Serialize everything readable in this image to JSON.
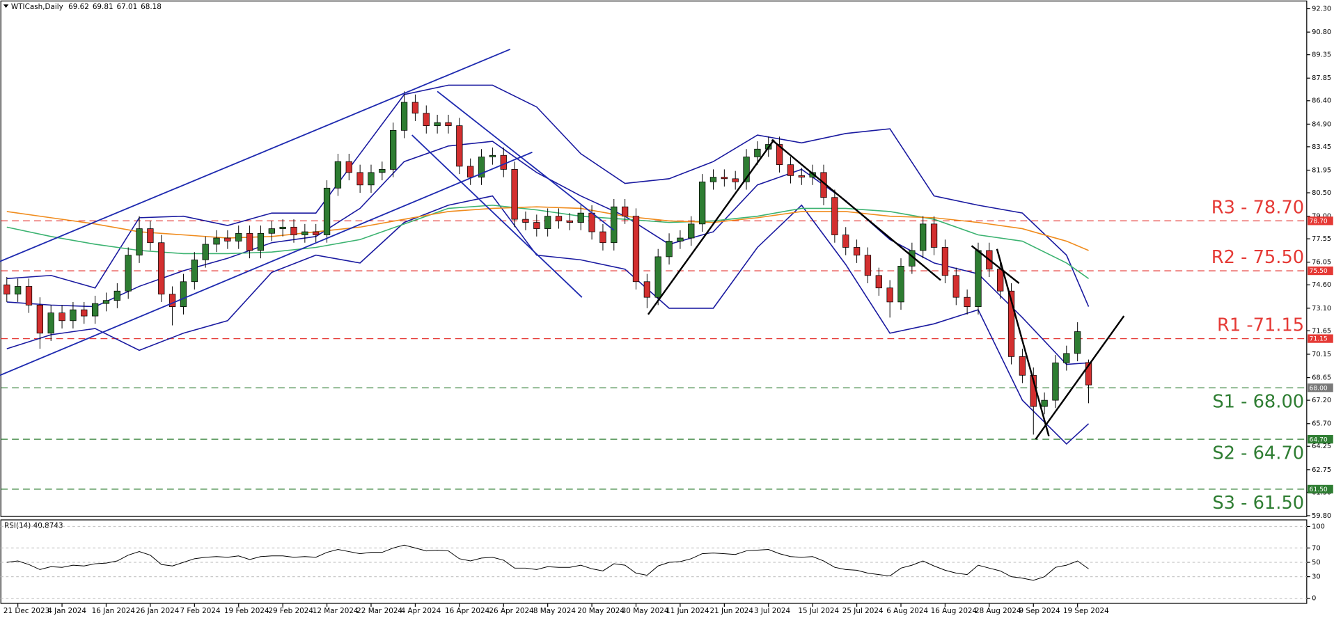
{
  "chart_data": [
    {
      "type": "candlestick",
      "title": "WTICash,Daily",
      "categories": [
        null,
        "21 Dec 2023",
        null,
        null,
        null,
        "4 Jan 2024",
        null,
        null,
        null,
        "16 Jan 2024",
        null,
        null,
        null,
        "26 Jan 2024",
        null,
        null,
        null,
        "7 Feb 2024",
        null,
        null,
        null,
        "19 Feb 2024",
        null,
        null,
        null,
        "29 Feb 2024",
        null,
        null,
        null,
        "12 Mar 2024",
        null,
        null,
        null,
        "22 Mar 2024",
        null,
        null,
        null,
        "4 Apr 2024",
        null,
        null,
        null,
        "16 Apr 2024",
        null,
        null,
        null,
        "26 Apr 2024",
        null,
        null,
        null,
        "8 May 2024",
        null,
        null,
        null,
        "20 May 2024",
        null,
        null,
        null,
        "30 May 2024",
        null,
        null,
        null,
        "11 Jun 2024",
        null,
        null,
        null,
        "21 Jun 2024",
        null,
        null,
        null,
        "3 Jul 2024",
        null,
        null,
        null,
        "15 Jul 2024",
        null,
        null,
        null,
        "25 Jul 2024",
        null,
        null,
        null,
        "6 Aug 2024",
        null,
        null,
        null,
        "16 Aug 2024",
        null,
        null,
        null,
        "28 Aug 2024",
        null,
        null,
        null,
        "9 Sep 2024",
        null,
        null,
        null,
        "19 Sep 2024",
        null
      ],
      "open": [
        74.6,
        74.0,
        74.5,
        73.3,
        71.5,
        72.8,
        72.3,
        73.0,
        72.6,
        73.4,
        73.6,
        74.2,
        76.5,
        78.2,
        77.3,
        74.0,
        73.2,
        74.8,
        76.2,
        77.2,
        77.6,
        77.4,
        77.9,
        76.8,
        77.9,
        78.2,
        78.3,
        77.8,
        78.0,
        77.8,
        80.8,
        82.5,
        81.8,
        81.0,
        81.8,
        82.0,
        84.5,
        86.3,
        85.6,
        84.8,
        85.0,
        84.8,
        82.2,
        81.5,
        82.8,
        82.9,
        82.0,
        78.8,
        78.6,
        78.2,
        79.0,
        78.7,
        78.6,
        79.2,
        78.0,
        77.3,
        79.6,
        79.0,
        74.8,
        73.8,
        76.4,
        77.4,
        77.6,
        78.5,
        81.2,
        81.5,
        81.4,
        81.2,
        82.8,
        83.3,
        83.6,
        82.3,
        81.6,
        81.5,
        81.8,
        80.2,
        77.8,
        77.0,
        76.5,
        75.2,
        74.4,
        73.5,
        75.8,
        76.8,
        78.5,
        77.0,
        75.2,
        73.8,
        73.2,
        76.8,
        75.6,
        74.2,
        70.0,
        68.8,
        66.8,
        67.2,
        69.6,
        70.2,
        69.62
      ],
      "high": [
        75.1,
        75.0,
        75.0,
        73.8,
        73.3,
        73.3,
        73.5,
        73.5,
        73.9,
        74.1,
        74.7,
        77.0,
        79.0,
        78.7,
        77.8,
        74.5,
        75.3,
        76.7,
        77.7,
        78.1,
        78.1,
        78.4,
        78.4,
        78.4,
        78.7,
        78.8,
        78.8,
        78.5,
        78.5,
        81.3,
        83.0,
        83.0,
        82.3,
        82.3,
        82.5,
        85.0,
        87.0,
        86.8,
        86.1,
        85.5,
        85.5,
        85.3,
        82.7,
        83.3,
        83.4,
        83.4,
        82.5,
        79.3,
        79.1,
        79.5,
        79.5,
        79.2,
        79.7,
        79.7,
        78.5,
        80.1,
        80.1,
        79.5,
        75.3,
        76.9,
        77.9,
        78.1,
        79.0,
        81.7,
        82.0,
        82.0,
        81.9,
        83.3,
        83.8,
        84.1,
        84.1,
        82.8,
        82.1,
        82.3,
        82.3,
        80.7,
        78.3,
        77.5,
        77.0,
        75.7,
        74.9,
        76.3,
        77.3,
        79.0,
        79.0,
        77.5,
        75.7,
        74.3,
        77.3,
        77.3,
        76.1,
        74.7,
        70.5,
        69.3,
        67.7,
        70.1,
        70.7,
        72.2,
        69.81
      ],
      "low": [
        73.5,
        73.5,
        72.8,
        70.5,
        71.0,
        71.8,
        71.8,
        72.1,
        72.1,
        72.9,
        73.1,
        73.7,
        76.0,
        76.8,
        73.5,
        72.0,
        72.7,
        74.3,
        75.7,
        76.7,
        76.9,
        76.9,
        76.3,
        76.3,
        77.4,
        77.7,
        77.3,
        77.3,
        77.3,
        77.3,
        80.3,
        81.3,
        80.5,
        80.5,
        81.3,
        81.5,
        84.0,
        85.1,
        84.3,
        84.3,
        84.3,
        81.7,
        81.0,
        81.0,
        82.3,
        81.5,
        78.3,
        78.1,
        77.7,
        77.7,
        78.2,
        78.1,
        78.1,
        77.5,
        76.8,
        76.8,
        78.5,
        74.3,
        73.1,
        73.3,
        75.9,
        76.9,
        77.1,
        78.0,
        80.7,
        80.9,
        80.7,
        80.7,
        82.3,
        82.8,
        81.8,
        81.1,
        81.0,
        81.0,
        79.7,
        77.3,
        76.5,
        76.0,
        74.7,
        73.9,
        72.5,
        73.0,
        75.3,
        76.3,
        76.5,
        74.7,
        73.3,
        72.7,
        72.7,
        75.1,
        73.7,
        69.5,
        68.3,
        65.0,
        66.3,
        66.7,
        69.1,
        69.7,
        67.01
      ],
      "close": [
        74.0,
        74.5,
        73.3,
        71.5,
        72.8,
        72.3,
        73.0,
        72.6,
        73.4,
        73.6,
        74.2,
        76.5,
        78.2,
        77.3,
        74.0,
        73.2,
        74.8,
        76.2,
        77.2,
        77.6,
        77.4,
        77.9,
        76.8,
        77.9,
        78.2,
        78.3,
        77.8,
        78.0,
        77.8,
        80.8,
        82.5,
        81.8,
        81.0,
        81.8,
        82.0,
        84.5,
        86.3,
        85.6,
        84.8,
        85.0,
        84.8,
        82.2,
        81.5,
        82.8,
        82.9,
        82.0,
        78.8,
        78.6,
        78.2,
        79.0,
        78.7,
        78.6,
        79.2,
        78.0,
        77.3,
        79.6,
        79.0,
        74.8,
        73.8,
        76.4,
        77.4,
        77.6,
        78.5,
        81.2,
        81.5,
        81.4,
        81.2,
        82.8,
        83.3,
        83.6,
        82.3,
        81.6,
        81.5,
        81.8,
        80.2,
        77.8,
        77.0,
        76.5,
        75.2,
        74.4,
        73.5,
        75.8,
        76.8,
        78.5,
        77.0,
        75.2,
        73.8,
        73.2,
        76.8,
        75.6,
        74.2,
        70.0,
        68.8,
        66.8,
        67.2,
        69.6,
        70.2,
        71.6,
        68.18
      ],
      "up_color": "#2e7d32",
      "down_color": "#d32f2f",
      "ylim": [
        59.75,
        92.74
      ],
      "yticks": [
        {
          "value": 92.3,
          "label": "92.30"
        },
        {
          "value": 90.8,
          "label": "90.80"
        },
        {
          "value": 89.35,
          "label": "89.35"
        },
        {
          "value": 87.85,
          "label": "87.85"
        },
        {
          "value": 86.4,
          "label": "86.40"
        },
        {
          "value": 84.9,
          "label": "84.90"
        },
        {
          "value": 83.45,
          "label": "83.45"
        },
        {
          "value": 81.95,
          "label": "81.95"
        },
        {
          "value": 80.5,
          "label": "80.50"
        },
        {
          "value": 79,
          "label": "79.00"
        },
        {
          "value": 77.55,
          "label": "77.55"
        },
        {
          "value": 76.05,
          "label": "76.05"
        },
        {
          "value": 74.6,
          "label": "74.60"
        },
        {
          "value": 73.1,
          "label": "73.10"
        },
        {
          "value": 71.65,
          "label": "71.65"
        },
        {
          "value": 70.15,
          "label": "70.15"
        },
        {
          "value": 68.65,
          "label": "68.65"
        },
        {
          "value": 67.2,
          "label": "67.20"
        },
        {
          "value": 65.7,
          "label": "65.70"
        },
        {
          "value": 64.25,
          "label": "64.25"
        },
        {
          "value": 62.75,
          "label": "62.75"
        },
        {
          "value": 61.3,
          "label": "61.30"
        },
        {
          "value": 59.8,
          "label": "59.80"
        }
      ],
      "grid": false,
      "overlays": [
        {
          "color": "#1a1aa0",
          "x": [
            0,
            4,
            8,
            12,
            16,
            20,
            24,
            28,
            32,
            36,
            40,
            44,
            48,
            52,
            56,
            60,
            64,
            68,
            72,
            76,
            80,
            84,
            88,
            92,
            96,
            98
          ],
          "values": [
            75.0,
            75.2,
            74.4,
            78.9,
            79.0,
            78.4,
            79.2,
            79.2,
            83.0,
            86.8,
            87.4,
            87.4,
            86.0,
            83.0,
            81.1,
            81.4,
            82.5,
            84.2,
            83.7,
            84.3,
            84.6,
            80.3,
            79.7,
            79.2,
            76.5,
            73.2
          ]
        },
        {
          "color": "#1a1aa0",
          "x": [
            0,
            4,
            8,
            12,
            16,
            20,
            24,
            28,
            32,
            36,
            40,
            44,
            48,
            52,
            56,
            60,
            64,
            68,
            72,
            76,
            80,
            84,
            88,
            92,
            96,
            98
          ],
          "values": [
            73.5,
            73.3,
            73.2,
            74.5,
            75.5,
            76.3,
            77.3,
            77.7,
            79.5,
            82.5,
            83.5,
            83.8,
            81.8,
            80.3,
            79.0,
            77.2,
            78.0,
            81.0,
            82.0,
            80.0,
            77.5,
            76.0,
            75.3,
            72.5,
            69.5,
            69.6
          ]
        },
        {
          "color": "#1a1aa0",
          "x": [
            0,
            4,
            8,
            12,
            16,
            20,
            24,
            28,
            32,
            36,
            40,
            44,
            48,
            52,
            56,
            60,
            64,
            68,
            72,
            76,
            80,
            84,
            88,
            92,
            96,
            98
          ],
          "values": [
            70.5,
            71.4,
            71.8,
            70.4,
            71.5,
            72.3,
            75.4,
            76.5,
            76.0,
            78.6,
            79.7,
            80.3,
            76.5,
            76.2,
            75.6,
            73.1,
            73.1,
            77.0,
            79.7,
            75.9,
            71.5,
            72.1,
            73.0,
            67.2,
            64.4,
            65.7
          ]
        },
        {
          "color": "#3cb371",
          "x": [
            0,
            4,
            8,
            12,
            16,
            20,
            24,
            28,
            32,
            36,
            40,
            44,
            48,
            52,
            56,
            60,
            64,
            68,
            72,
            76,
            80,
            84,
            88,
            92,
            96,
            98
          ],
          "values": [
            78.3,
            77.7,
            77.2,
            76.8,
            76.6,
            76.6,
            76.7,
            77.0,
            77.5,
            78.5,
            79.5,
            79.7,
            79.4,
            79.0,
            78.8,
            78.6,
            78.7,
            79.0,
            79.5,
            79.5,
            79.3,
            78.8,
            77.8,
            77.4,
            76.0,
            75.0
          ]
        },
        {
          "color": "#f08c1e",
          "x": [
            0,
            4,
            8,
            12,
            16,
            20,
            24,
            28,
            32,
            36,
            40,
            44,
            48,
            52,
            56,
            60,
            64,
            68,
            72,
            76,
            80,
            84,
            88,
            92,
            96,
            98
          ],
          "values": [
            79.3,
            78.9,
            78.5,
            78.0,
            77.8,
            77.6,
            77.7,
            78.0,
            78.3,
            78.8,
            79.3,
            79.5,
            79.6,
            79.5,
            79.0,
            78.7,
            78.6,
            78.9,
            79.3,
            79.3,
            79.0,
            78.9,
            78.6,
            78.2,
            77.4,
            76.8
          ]
        }
      ],
      "trendlines": [
        {
          "color": "#1f2bb0",
          "x": [
            -0.62,
            45.6
          ],
          "values": [
            76.1,
            89.7
          ]
        },
        {
          "color": "#1f2bb0",
          "x": [
            -0.62,
            47.6
          ],
          "values": [
            68.8,
            83.1
          ]
        },
        {
          "color": "#1f2bb0",
          "x": [
            36.7,
            52.1
          ],
          "values": [
            84.2,
            73.8
          ]
        },
        {
          "color": "#1f2bb0",
          "x": [
            39.0,
            55.0
          ],
          "values": [
            87.0,
            78.1
          ]
        },
        {
          "color": "#000000",
          "x": [
            58.1,
            69.5
          ],
          "values": [
            72.7,
            83.9
          ]
        },
        {
          "color": "#000000",
          "x": [
            69.3,
            84.6
          ],
          "values": [
            83.9,
            74.9
          ]
        },
        {
          "color": "#000000",
          "x": [
            87.4,
            91.7
          ],
          "values": [
            77.1,
            74.7
          ]
        },
        {
          "color": "#000000",
          "x": [
            89.7,
            94.4
          ],
          "values": [
            76.9,
            64.9
          ]
        },
        {
          "color": "#000000",
          "x": [
            93.2,
            101.2
          ],
          "values": [
            64.7,
            72.6
          ]
        }
      ],
      "levels": [
        {
          "value": 78.7,
          "label": "R3 - 78.70",
          "marker_label": "78.70",
          "color": "#e53935",
          "marker_color": "#e53935",
          "label_position": "above"
        },
        {
          "value": 75.5,
          "label": "R2 - 75.50",
          "marker_label": "75.50",
          "color": "#e53935",
          "marker_color": "#e53935",
          "label_position": "above"
        },
        {
          "value": 71.15,
          "label": "R1 -71.15",
          "marker_label": "71.15",
          "color": "#e53935",
          "marker_color": "#e53935",
          "label_position": "above"
        },
        {
          "value": 68.0,
          "label": "S1 - 68.00",
          "marker_label": "68.00",
          "color": "#2e7d32",
          "marker_color": "#7a7a7a",
          "label_position": "below"
        },
        {
          "value": 64.7,
          "label": "S2 - 64.70",
          "marker_label": "64.70",
          "color": "#2e7d32",
          "marker_color": "#2e7d32",
          "label_position": "below"
        },
        {
          "value": 61.5,
          "label": "S3 - 61.50",
          "marker_label": "61.50",
          "color": "#2e7d32",
          "marker_color": "#2e7d32",
          "label_position": "below"
        }
      ]
    },
    {
      "type": "line",
      "title": "RSI(14) 40.8743",
      "color": "#000000",
      "values": [
        50,
        52,
        47,
        40,
        44,
        43,
        46,
        45,
        48,
        49,
        52,
        60,
        65,
        60,
        47,
        45,
        50,
        55,
        57,
        58,
        57,
        59,
        54,
        58,
        59,
        59,
        57,
        58,
        57,
        64,
        68,
        65,
        62,
        64,
        64,
        70,
        74,
        70,
        66,
        67,
        66,
        55,
        52,
        56,
        57,
        53,
        42,
        42,
        40,
        44,
        43,
        43,
        46,
        41,
        38,
        48,
        46,
        35,
        32,
        45,
        50,
        51,
        55,
        62,
        63,
        62,
        61,
        66,
        67,
        68,
        62,
        58,
        57,
        58,
        52,
        43,
        40,
        39,
        35,
        33,
        31,
        42,
        46,
        52,
        45,
        39,
        35,
        33,
        46,
        42,
        38,
        30,
        28,
        25,
        30,
        43,
        46,
        52,
        40.8743
      ],
      "ylim": [
        -6,
        108
      ],
      "yticks": [
        100,
        70,
        50,
        30,
        0
      ],
      "grid": true
    }
  ]
}
